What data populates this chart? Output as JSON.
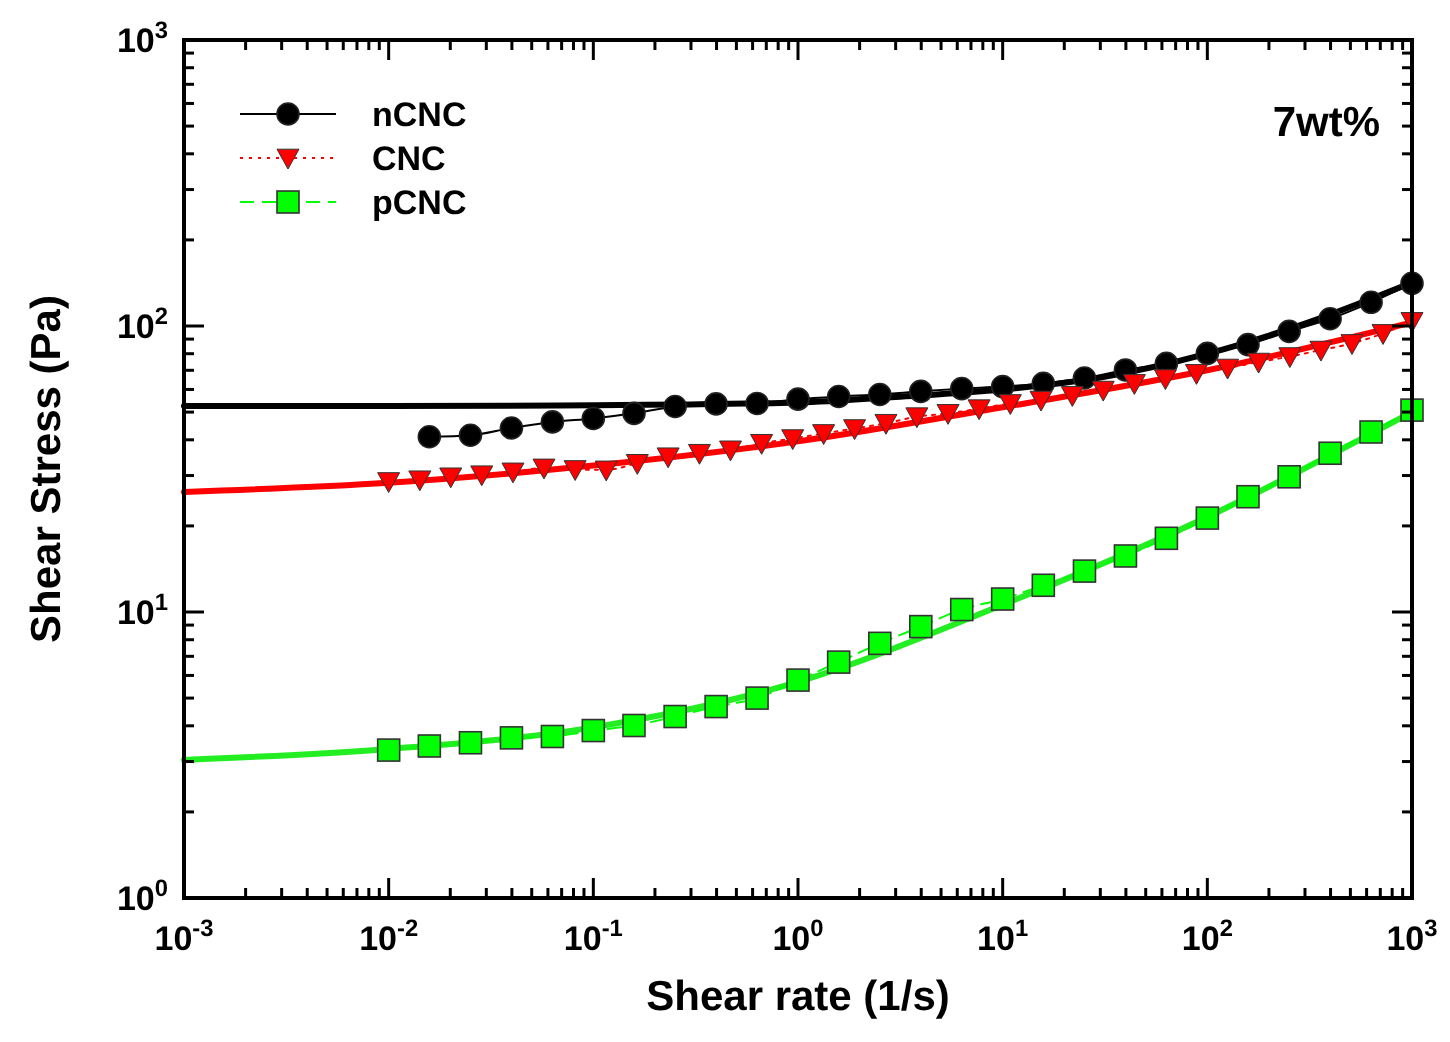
{
  "chart_data": {
    "type": "line",
    "xlabel": "Shear rate (1/s)",
    "ylabel": "Shear Stress (Pa)",
    "log": "xy",
    "grid": false,
    "legend": "top left",
    "annotations": [
      "7wt%"
    ],
    "xlim": [
      0.001,
      1000
    ],
    "ylim": [
      1,
      1000
    ],
    "xticks": [
      {
        "value": 0.001,
        "label": "10$^{-3}$"
      },
      {
        "value": 0.002,
        "label": null
      },
      {
        "value": 0.003,
        "label": null
      },
      {
        "value": 0.004,
        "label": null
      },
      {
        "value": 0.005,
        "label": null
      },
      {
        "value": 0.006,
        "label": null
      },
      {
        "value": 0.007,
        "label": null
      },
      {
        "value": 0.008,
        "label": null
      },
      {
        "value": 0.009,
        "label": null
      },
      {
        "value": 0.01,
        "label": "10$^{-2}$"
      },
      {
        "value": 0.02,
        "label": null
      },
      {
        "value": 0.03,
        "label": null
      },
      {
        "value": 0.04,
        "label": null
      },
      {
        "value": 0.05,
        "label": null
      },
      {
        "value": 0.06,
        "label": null
      },
      {
        "value": 0.07,
        "label": null
      },
      {
        "value": 0.08,
        "label": null
      },
      {
        "value": 0.09,
        "label": null
      },
      {
        "value": 0.1,
        "label": "10$^{-1}$"
      },
      {
        "value": 0.2,
        "label": null
      },
      {
        "value": 0.3,
        "label": null
      },
      {
        "value": 0.4,
        "label": null
      },
      {
        "value": 0.5,
        "label": null
      },
      {
        "value": 0.6,
        "label": null
      },
      {
        "value": 0.7,
        "label": null
      },
      {
        "value": 0.8,
        "label": null
      },
      {
        "value": 0.9,
        "label": null
      },
      {
        "value": 1,
        "label": "10$^{0}$"
      },
      {
        "value": 2,
        "label": null
      },
      {
        "value": 3,
        "label": null
      },
      {
        "value": 4,
        "label": null
      },
      {
        "value": 5,
        "label": null
      },
      {
        "value": 6,
        "label": null
      },
      {
        "value": 7,
        "label": null
      },
      {
        "value": 8,
        "label": null
      },
      {
        "value": 9,
        "label": null
      },
      {
        "value": 10,
        "label": "10$^{1}$"
      },
      {
        "value": 20,
        "label": null
      },
      {
        "value": 30,
        "label": null
      },
      {
        "value": 40,
        "label": null
      },
      {
        "value": 50,
        "label": null
      },
      {
        "value": 60,
        "label": null
      },
      {
        "value": 70,
        "label": null
      },
      {
        "value": 80,
        "label": null
      },
      {
        "value": 90,
        "label": null
      },
      {
        "value": 100,
        "label": "10$^{2}$"
      },
      {
        "value": 200,
        "label": null
      },
      {
        "value": 300,
        "label": null
      },
      {
        "value": 400,
        "label": null
      },
      {
        "value": 500,
        "label": null
      },
      {
        "value": 600,
        "label": null
      },
      {
        "value": 700,
        "label": null
      },
      {
        "value": 800,
        "label": null
      },
      {
        "value": 900,
        "label": null
      },
      {
        "value": 1000,
        "label": "10$^{3}$"
      }
    ],
    "yticks": [
      {
        "value": 1,
        "label": "10$^{0}$"
      },
      {
        "value": 2,
        "label": null
      },
      {
        "value": 3,
        "label": null
      },
      {
        "value": 4,
        "label": null
      },
      {
        "value": 5,
        "label": null
      },
      {
        "value": 6,
        "label": null
      },
      {
        "value": 7,
        "label": null
      },
      {
        "value": 8,
        "label": null
      },
      {
        "value": 9,
        "label": null
      },
      {
        "value": 10,
        "label": "10$^{1}$"
      },
      {
        "value": 20,
        "label": null
      },
      {
        "value": 30,
        "label": null
      },
      {
        "value": 40,
        "label": null
      },
      {
        "value": 50,
        "label": null
      },
      {
        "value": 60,
        "label": null
      },
      {
        "value": 70,
        "label": null
      },
      {
        "value": 80,
        "label": null
      },
      {
        "value": 90,
        "label": null
      },
      {
        "value": 100,
        "label": "10$^{2}$"
      },
      {
        "value": 200,
        "label": null
      },
      {
        "value": 300,
        "label": null
      },
      {
        "value": 400,
        "label": null
      },
      {
        "value": 500,
        "label": null
      },
      {
        "value": 600,
        "label": null
      },
      {
        "value": 700,
        "label": null
      },
      {
        "value": 800,
        "label": null
      },
      {
        "value": 900,
        "label": null
      },
      {
        "value": 1000,
        "label": "10$^{3}$"
      }
    ],
    "series": [
      {
        "color": "#000000",
        "marker": "none",
        "line_style": "solid",
        "x": [
          0.001,
          0.01,
          0.1,
          1,
          3,
          10,
          30,
          100,
          300,
          1000
        ],
        "values": [
          52.5,
          52.5,
          52.8,
          54,
          56.5,
          60,
          66,
          80,
          102,
          142
        ]
      },
      {
        "color": "#ff0000",
        "marker": "none",
        "line_style": "solid",
        "x": [
          0.001,
          0.01,
          0.1,
          1,
          10,
          100,
          1000
        ],
        "values": [
          26.3,
          28.3,
          32.5,
          39.5,
          52,
          70,
          103
        ]
      },
      {
        "color": "#22ee22",
        "marker": "none",
        "line_style": "solid",
        "x": [
          0.001,
          0.01,
          0.1,
          1,
          10,
          100,
          1000
        ],
        "values": [
          3.04,
          3.32,
          3.95,
          5.7,
          10.6,
          21.5,
          50
        ]
      },
      {
        "name": "nCNC",
        "color": "#000000",
        "marker": "circle",
        "line_style": "solid",
        "x": [
          0.0158,
          0.0251,
          0.0398,
          0.0631,
          0.1,
          0.158,
          0.251,
          0.398,
          0.631,
          1,
          1.58,
          2.51,
          3.98,
          6.31,
          10,
          15.8,
          25.1,
          39.8,
          63.1,
          100,
          158,
          251,
          398,
          631,
          1000
        ],
        "values": [
          41.0,
          41.5,
          44.0,
          46.2,
          47.5,
          49.5,
          52.3,
          53.4,
          53.6,
          55.5,
          56.7,
          57.6,
          59.1,
          60.4,
          61.4,
          63.0,
          65.8,
          70.2,
          74.0,
          80.2,
          86.1,
          95.8,
          106,
          121,
          141
        ]
      },
      {
        "name": "CNC",
        "color": "#ff0000",
        "marker": "triangle",
        "line_style": "dotted",
        "x": [
          0.01,
          0.0142,
          0.0201,
          0.0285,
          0.0405,
          0.0574,
          0.0815,
          0.1156,
          0.164,
          0.232,
          0.33,
          0.468,
          0.664,
          0.942,
          1.334,
          1.89,
          2.69,
          3.81,
          5.41,
          7.67,
          10.9,
          15.4,
          21.9,
          31,
          44,
          62.4,
          88.5,
          125.6,
          178,
          253,
          359,
          509,
          722,
          1000
        ],
        "values": [
          28.6,
          29.0,
          29.7,
          30.2,
          30.9,
          31.9,
          31.5,
          31.4,
          33.1,
          34.9,
          35.9,
          36.9,
          38.9,
          40.4,
          42.1,
          43.8,
          45.7,
          48.2,
          49.5,
          51.4,
          53.6,
          55.1,
          57.2,
          59.7,
          63.0,
          65.5,
          68.3,
          71.3,
          74.8,
          78.2,
          82.4,
          86.9,
          94.2,
          103.8
        ]
      },
      {
        "name": "pCNC",
        "color": "#00ff00",
        "marker": "square",
        "line_style": "dashed",
        "x": [
          0.01,
          0.0158,
          0.0251,
          0.0398,
          0.0631,
          0.1,
          0.158,
          0.251,
          0.398,
          0.631,
          1,
          1.58,
          2.51,
          3.98,
          6.31,
          10,
          15.8,
          25.1,
          39.8,
          63.1,
          100,
          158,
          251,
          398,
          631,
          1000
        ],
        "values": [
          3.29,
          3.4,
          3.49,
          3.63,
          3.67,
          3.85,
          4.01,
          4.31,
          4.67,
          5.0,
          5.78,
          6.68,
          7.77,
          8.89,
          10.2,
          11.1,
          12.4,
          13.9,
          15.7,
          18.1,
          21.3,
          25.3,
          29.7,
          35.9,
          42.6,
          50.8
        ]
      }
    ]
  }
}
